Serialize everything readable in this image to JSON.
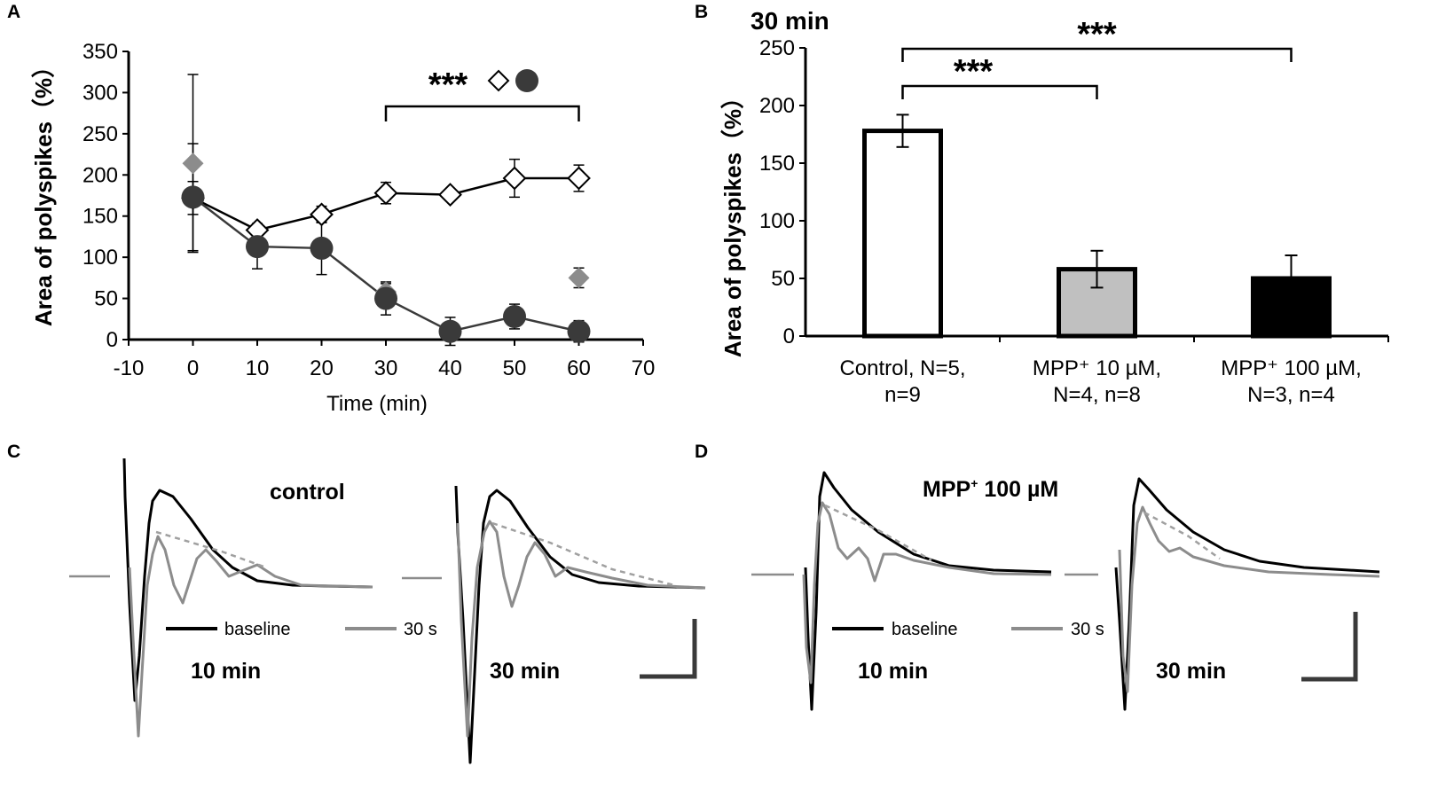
{
  "panels": {
    "A": {
      "letter": "A"
    },
    "B": {
      "letter": "B"
    },
    "C": {
      "letter": "C"
    },
    "D": {
      "letter": "D"
    }
  },
  "chart_data": [
    {
      "panel": "A",
      "type": "line",
      "title": "",
      "xlabel": "Time (min)",
      "ylabel": "Area of polyspikes（%）",
      "xlim": [
        -10,
        70
      ],
      "ylim": [
        0,
        350
      ],
      "xticks": [
        -10,
        0,
        10,
        20,
        30,
        40,
        50,
        60,
        70
      ],
      "yticks": [
        0,
        50,
        100,
        150,
        200,
        250,
        300,
        350
      ],
      "series": [
        {
          "name": "control",
          "marker": "open-diamond",
          "color": "#000000",
          "x": [
            0,
            10,
            20,
            30,
            40,
            50,
            60
          ],
          "y": [
            172,
            133,
            152,
            178,
            176,
            196,
            196
          ],
          "err": [
            20,
            8,
            10,
            13,
            6,
            23,
            16
          ]
        },
        {
          "name": "MPP+ 10 µM",
          "marker": "gray-diamond",
          "color": "#8c8c8c",
          "x": [
            0,
            30,
            60
          ],
          "y": [
            214,
            58,
            75
          ],
          "err": [
            108,
            10,
            12
          ]
        },
        {
          "name": "MPP+ 100 µM",
          "marker": "filled-circle",
          "color": "#3a3a3a",
          "x": [
            0,
            10,
            20,
            30,
            40,
            50,
            60
          ],
          "y": [
            173,
            113,
            111,
            50,
            10,
            28,
            10
          ],
          "err": [
            65,
            27,
            32,
            20,
            17,
            15,
            13
          ]
        }
      ],
      "significance": {
        "text": "***",
        "span": [
          30,
          60
        ],
        "symbols": [
          "open-diamond",
          "filled-circle"
        ]
      }
    },
    {
      "panel": "B",
      "type": "bar",
      "title": "30  min",
      "xlabel": "",
      "ylabel": "Area of polyspikes（%）",
      "ylim": [
        0,
        250
      ],
      "yticks": [
        0,
        50,
        100,
        150,
        200,
        250
      ],
      "categories": [
        {
          "line1": "Control, N=5,",
          "line2": "n=9"
        },
        {
          "line1": "MPP⁺ 10 µM,",
          "line2": "N=4, n=8"
        },
        {
          "line1": "MPP⁺ 100 µM,",
          "line2": "N=3, n=4"
        }
      ],
      "values": [
        178,
        58,
        50
      ],
      "errors": [
        14,
        16,
        20
      ],
      "fills": [
        "#ffffff",
        "#c0c0c0",
        "#000000"
      ],
      "significance": [
        {
          "text": "***",
          "from": 0,
          "to": 1
        },
        {
          "text": "***",
          "from": 0,
          "to": 2
        }
      ]
    }
  ],
  "traces": {
    "C": {
      "condition": "control",
      "left_time": "10 min",
      "right_time": "30  min",
      "legend_baseline": "baseline",
      "legend_30s": "30 s"
    },
    "D": {
      "condition_main": "MPP",
      "condition_sup": "+",
      "condition_rest": " 100 µM",
      "left_time": "10 min",
      "right_time": "30  min",
      "legend_baseline": "baseline",
      "legend_30s": "30 s"
    }
  },
  "colors": {
    "black_trace": "#000000",
    "gray_trace": "#8c8c8c",
    "dashed_fit": "#a0a0a0"
  }
}
